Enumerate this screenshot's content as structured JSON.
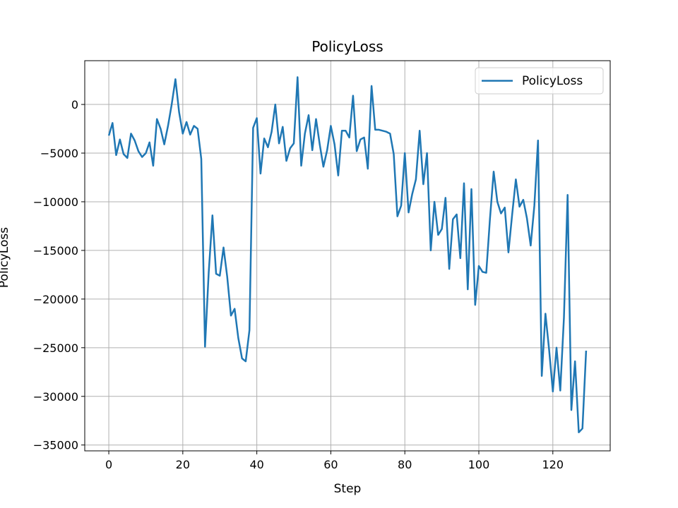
{
  "chart_data": {
    "type": "line",
    "title": "PolicyLoss",
    "xlabel": "Step",
    "ylabel": "PolicyLoss",
    "xlim": [
      -6.5,
      135.5
    ],
    "ylim": [
      -35600,
      4500
    ],
    "xticks": [
      0,
      20,
      40,
      60,
      80,
      100,
      120
    ],
    "xtick_labels": [
      "0",
      "20",
      "40",
      "60",
      "80",
      "100",
      "120"
    ],
    "yticks": [
      0,
      -5000,
      -10000,
      -15000,
      -20000,
      -25000,
      -30000,
      -35000
    ],
    "ytick_labels": [
      "0",
      "−5000",
      "−10000",
      "−15000",
      "−20000",
      "−25000",
      "−30000",
      "−35000"
    ],
    "grid": true,
    "legend": "upper-right",
    "series": [
      {
        "name": "PolicyLoss",
        "color": "#1f77b4",
        "x": [
          0,
          1,
          2,
          3,
          4,
          5,
          6,
          7,
          8,
          9,
          10,
          11,
          12,
          13,
          14,
          15,
          16,
          17,
          18,
          19,
          20,
          21,
          22,
          23,
          24,
          25,
          26,
          27,
          28,
          29,
          30,
          31,
          32,
          33,
          34,
          35,
          36,
          37,
          38,
          39,
          40,
          41,
          42,
          43,
          44,
          45,
          46,
          47,
          48,
          49,
          50,
          51,
          52,
          53,
          54,
          55,
          56,
          57,
          58,
          59,
          60,
          61,
          62,
          63,
          64,
          65,
          66,
          67,
          68,
          69,
          70,
          71,
          72,
          73,
          74,
          75,
          76,
          77,
          78,
          79,
          80,
          81,
          82,
          83,
          84,
          85,
          86,
          87,
          88,
          89,
          90,
          91,
          92,
          93,
          94,
          95,
          96,
          97,
          98,
          99,
          100,
          101,
          102,
          103,
          104,
          105,
          106,
          107,
          108,
          109,
          110,
          111,
          112,
          113,
          114,
          115,
          116,
          117,
          118,
          119,
          120,
          121,
          122,
          123,
          124,
          125,
          126,
          127,
          128,
          129
        ],
        "y": [
          -3200,
          -1900,
          -5200,
          -3600,
          -5100,
          -5500,
          -3000,
          -3700,
          -4800,
          -5400,
          -5000,
          -3900,
          -6300,
          -1500,
          -2500,
          -4100,
          -2200,
          0,
          2600,
          -800,
          -3000,
          -1800,
          -3100,
          -2200,
          -2500,
          -5600,
          -24900,
          -17300,
          -11400,
          -17400,
          -17600,
          -14700,
          -17700,
          -21700,
          -21000,
          -24000,
          -26100,
          -26400,
          -23200,
          -2400,
          -1400,
          -7100,
          -3500,
          -4400,
          -2800,
          0,
          -4000,
          -2300,
          -5800,
          -4500,
          -4000,
          2800,
          -6300,
          -3000,
          -1100,
          -4700,
          -1500,
          -4100,
          -6400,
          -4700,
          -2200,
          -4100,
          -7300,
          -2700,
          -2700,
          -3400,
          900,
          -4800,
          -3600,
          -3400,
          -6600,
          1900,
          -2600,
          -2600,
          -2700,
          -2800,
          -3000,
          -5100,
          -11500,
          -10400,
          -5000,
          -11100,
          -9200,
          -7700,
          -2700,
          -8200,
          -5000,
          -15000,
          -10000,
          -13400,
          -12800,
          -9600,
          -16900,
          -11800,
          -11300,
          -15800,
          -8100,
          -19000,
          -8700,
          -20600,
          -16600,
          -17200,
          -17300,
          -11800,
          -6900,
          -10000,
          -11200,
          -10600,
          -15200,
          -11300,
          -7700,
          -10500,
          -9800,
          -11700,
          -14500,
          -10400,
          -3700,
          -27900,
          -21500,
          -25200,
          -29500,
          -25000,
          -29400,
          -21900,
          -9300,
          -31400,
          -26400,
          -33700,
          -33300,
          -25300
        ]
      }
    ]
  }
}
